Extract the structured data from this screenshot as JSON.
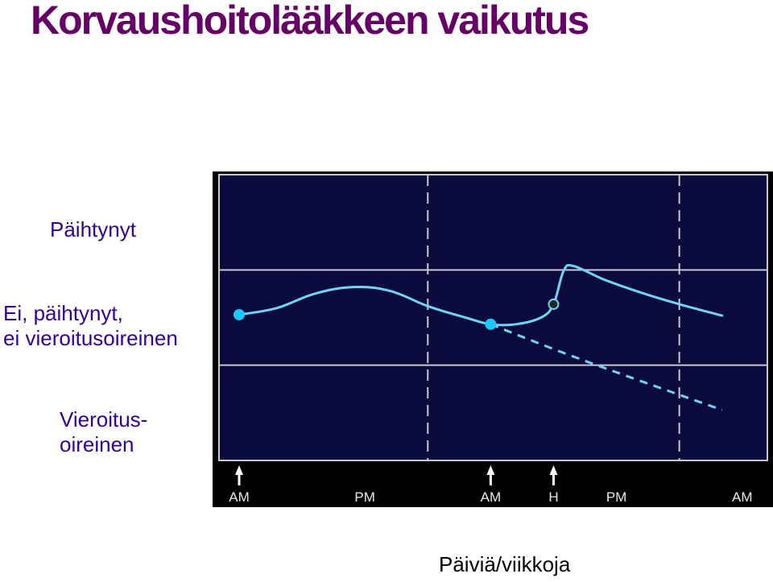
{
  "title": "Korvaushoitolääkkeen vaikutus",
  "labels": {
    "top": "Päihtynyt",
    "mid_line1": "Ei, päihtynyt,",
    "mid_line2": "ei vieroitusoireinen",
    "bot_line1": "Vieroitus-",
    "bot_line2": "oireinen"
  },
  "xlabel": "Päiviä/viikkoja",
  "colors": {
    "title": "#660066",
    "labels": "#330099",
    "chart_bg": "#0a0a3c",
    "curve": "#6ed4f5",
    "marker": "#1ec8ff",
    "grid": "#c8c8c8"
  },
  "chart_data": {
    "type": "line",
    "title": "",
    "xlabel": "Päiviä/viikkoja",
    "ylabel": "",
    "x_tick_labels": [
      "AM",
      "PM",
      "AM",
      "H",
      "PM",
      "AM"
    ],
    "x_ticks": [
      0,
      0.5,
      1,
      1.25,
      1.5,
      2
    ],
    "dose_arrows_at": [
      0,
      1,
      1.25
    ],
    "xlim": [
      -0.08,
      2.1
    ],
    "y_bands": [
      "Vieroitusoireinen",
      "Ei, päihtynyt, ei vieroitusoireinen",
      "Päihtynyt"
    ],
    "ylim": [
      0,
      3
    ],
    "vertical_dashed_lines_x": [
      0.75,
      1.75
    ],
    "series": [
      {
        "style": "solid",
        "points": [
          [
            0,
            1.53
          ],
          [
            0.15,
            1.6
          ],
          [
            0.3,
            1.75
          ],
          [
            0.45,
            1.82
          ],
          [
            0.6,
            1.78
          ],
          [
            0.75,
            1.62
          ],
          [
            0.9,
            1.5
          ],
          [
            1.0,
            1.43
          ],
          [
            1.1,
            1.43
          ],
          [
            1.2,
            1.5
          ],
          [
            1.25,
            1.64
          ],
          [
            1.29,
            1.99
          ],
          [
            1.33,
            2.04
          ],
          [
            1.45,
            1.9
          ],
          [
            1.6,
            1.76
          ],
          [
            1.75,
            1.64
          ],
          [
            1.92,
            1.52
          ]
        ]
      },
      {
        "style": "dashed",
        "points": [
          [
            1.0,
            1.43
          ],
          [
            1.35,
            1.07
          ],
          [
            1.92,
            0.53
          ]
        ]
      }
    ],
    "markers": [
      {
        "x": 0,
        "y": 1.53,
        "style": "filled"
      },
      {
        "x": 1.0,
        "y": 1.43,
        "style": "filled"
      },
      {
        "x": 1.25,
        "y": 1.64,
        "style": "open"
      }
    ],
    "grid": true
  }
}
